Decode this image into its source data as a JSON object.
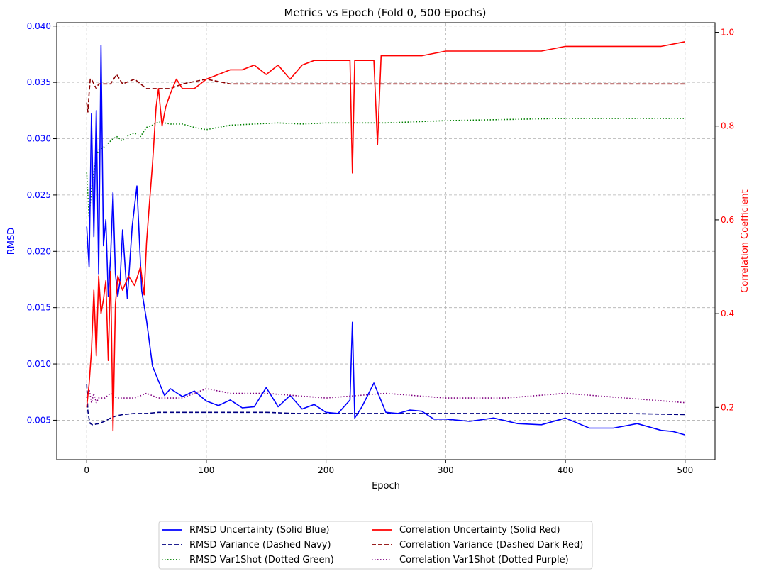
{
  "chart_data": {
    "type": "line",
    "title": "Metrics vs Epoch (Fold 0, 500 Epochs)",
    "xlabel": "Epoch",
    "ylabel_left": "RMSD",
    "ylabel_right": "Correlation Coefficient",
    "xlim": [
      -25,
      525
    ],
    "ylim_left": [
      0.0015,
      0.0403
    ],
    "ylim_right": [
      0.0885,
      1.0205
    ],
    "x_ticks": [
      0,
      100,
      200,
      300,
      400,
      500
    ],
    "x_tick_labels": [
      "0",
      "100",
      "200",
      "300",
      "400",
      "500"
    ],
    "y_left_ticks": [
      0.005,
      0.01,
      0.015,
      0.02,
      0.025,
      0.03,
      0.035,
      0.04
    ],
    "y_left_tick_labels": [
      "0.005",
      "0.010",
      "0.015",
      "0.020",
      "0.025",
      "0.030",
      "0.035",
      "0.040"
    ],
    "y_right_ticks": [
      0.2,
      0.4,
      0.6,
      0.8,
      1.0
    ],
    "y_right_tick_labels": [
      "0.2",
      "0.4",
      "0.6",
      "0.8",
      "1.0"
    ],
    "left_axis_color": "#0000ff",
    "right_axis_color": "#ff0000",
    "grid": true,
    "legend_placement": "bottom-center",
    "series": [
      {
        "name": "RMSD Uncertainty (Solid Blue)",
        "axis": "left",
        "color": "#0000ff",
        "dash": "solid",
        "x": [
          0,
          2,
          4,
          6,
          8,
          10,
          12,
          14,
          16,
          18,
          20,
          22,
          24,
          26,
          28,
          30,
          34,
          38,
          42,
          46,
          50,
          55,
          60,
          65,
          70,
          80,
          90,
          100,
          110,
          120,
          130,
          140,
          150,
          160,
          170,
          180,
          190,
          200,
          210,
          220,
          222,
          224,
          230,
          240,
          250,
          260,
          270,
          280,
          290,
          300,
          320,
          340,
          360,
          380,
          400,
          420,
          440,
          460,
          480,
          490,
          500
        ],
        "values": [
          0.0222,
          0.0186,
          0.0322,
          0.0213,
          0.0325,
          0.018,
          0.0383,
          0.0205,
          0.0228,
          0.016,
          0.0195,
          0.0252,
          0.018,
          0.016,
          0.0175,
          0.0219,
          0.0158,
          0.0222,
          0.0258,
          0.0165,
          0.0139,
          0.0098,
          0.0085,
          0.0072,
          0.0078,
          0.0071,
          0.0076,
          0.0067,
          0.0063,
          0.0068,
          0.0061,
          0.0062,
          0.0079,
          0.0062,
          0.0072,
          0.006,
          0.0064,
          0.0057,
          0.0056,
          0.0068,
          0.0137,
          0.0052,
          0.0062,
          0.0083,
          0.0057,
          0.0056,
          0.0059,
          0.0058,
          0.0051,
          0.0051,
          0.0049,
          0.0052,
          0.0047,
          0.0046,
          0.0052,
          0.0043,
          0.0043,
          0.0047,
          0.0041,
          0.004,
          0.0037
        ]
      },
      {
        "name": "RMSD Variance (Dashed Navy)",
        "axis": "left",
        "color": "#000080",
        "dash": "dashed",
        "x": [
          0,
          1,
          2,
          3,
          5,
          10,
          15,
          20,
          25,
          30,
          40,
          50,
          60,
          70,
          80,
          100,
          125,
          150,
          175,
          200,
          250,
          300,
          350,
          400,
          450,
          500
        ],
        "values": [
          0.0082,
          0.0058,
          0.0051,
          0.0047,
          0.0046,
          0.0047,
          0.0049,
          0.0052,
          0.0054,
          0.0055,
          0.0056,
          0.0056,
          0.0057,
          0.0057,
          0.0057,
          0.0057,
          0.0057,
          0.0057,
          0.0056,
          0.0056,
          0.0056,
          0.0056,
          0.0056,
          0.0056,
          0.0056,
          0.0055
        ]
      },
      {
        "name": "RMSD Var1Shot (Dotted Green)",
        "axis": "left",
        "color": "#008000",
        "dash": "dotted",
        "x": [
          0,
          2,
          4,
          6,
          8,
          10,
          15,
          20,
          25,
          30,
          35,
          40,
          45,
          50,
          55,
          60,
          70,
          80,
          90,
          100,
          120,
          140,
          160,
          180,
          200,
          250,
          300,
          350,
          400,
          450,
          500
        ],
        "values": [
          0.027,
          0.023,
          0.0255,
          0.027,
          0.0285,
          0.029,
          0.0293,
          0.0298,
          0.0302,
          0.0298,
          0.0303,
          0.0305,
          0.0302,
          0.031,
          0.0312,
          0.0315,
          0.0313,
          0.0313,
          0.031,
          0.0308,
          0.0312,
          0.0313,
          0.0314,
          0.0313,
          0.0314,
          0.0314,
          0.0316,
          0.0317,
          0.0318,
          0.0318,
          0.0318
        ]
      },
      {
        "name": "Correlation Uncertainty (Solid Red)",
        "axis": "right",
        "color": "#ff0000",
        "dash": "solid",
        "x": [
          0,
          2,
          4,
          6,
          8,
          10,
          12,
          14,
          16,
          18,
          20,
          22,
          24,
          26,
          30,
          35,
          40,
          45,
          48,
          50,
          52,
          55,
          58,
          60,
          63,
          66,
          70,
          75,
          80,
          90,
          100,
          110,
          120,
          130,
          140,
          150,
          160,
          170,
          180,
          190,
          200,
          210,
          220,
          222,
          224,
          230,
          240,
          243,
          246,
          250,
          260,
          270,
          280,
          300,
          320,
          340,
          360,
          380,
          400,
          420,
          440,
          460,
          480,
          500
        ],
        "values": [
          0.2,
          0.25,
          0.32,
          0.45,
          0.31,
          0.48,
          0.4,
          0.43,
          0.47,
          0.3,
          0.49,
          0.15,
          0.42,
          0.48,
          0.45,
          0.48,
          0.46,
          0.5,
          0.44,
          0.55,
          0.62,
          0.72,
          0.84,
          0.88,
          0.8,
          0.84,
          0.87,
          0.9,
          0.88,
          0.88,
          0.9,
          0.91,
          0.92,
          0.92,
          0.93,
          0.91,
          0.93,
          0.9,
          0.93,
          0.94,
          0.94,
          0.94,
          0.94,
          0.7,
          0.94,
          0.94,
          0.94,
          0.76,
          0.95,
          0.95,
          0.95,
          0.95,
          0.95,
          0.96,
          0.96,
          0.96,
          0.96,
          0.96,
          0.97,
          0.97,
          0.97,
          0.97,
          0.97,
          0.98
        ]
      },
      {
        "name": "Correlation Variance (Dashed Dark Red)",
        "axis": "right",
        "color": "#8b0000",
        "dash": "dashed",
        "x": [
          0,
          1,
          2,
          3,
          4,
          6,
          8,
          10,
          15,
          20,
          25,
          30,
          40,
          50,
          60,
          70,
          80,
          100,
          120,
          140,
          160,
          180,
          200,
          250,
          300,
          350,
          400,
          450,
          500
        ],
        "values": [
          0.85,
          0.83,
          0.87,
          0.9,
          0.9,
          0.89,
          0.88,
          0.89,
          0.89,
          0.89,
          0.91,
          0.89,
          0.9,
          0.88,
          0.88,
          0.88,
          0.89,
          0.9,
          0.89,
          0.89,
          0.89,
          0.89,
          0.89,
          0.89,
          0.89,
          0.89,
          0.89,
          0.89,
          0.89
        ]
      },
      {
        "name": "Correlation Var1Shot (Dotted Purple)",
        "axis": "right",
        "color": "#800080",
        "dash": "dotted",
        "x": [
          0,
          2,
          4,
          6,
          8,
          10,
          15,
          20,
          25,
          30,
          40,
          50,
          60,
          80,
          100,
          120,
          150,
          200,
          250,
          300,
          350,
          400,
          450,
          500
        ],
        "values": [
          0.22,
          0.24,
          0.21,
          0.23,
          0.21,
          0.22,
          0.22,
          0.23,
          0.22,
          0.22,
          0.22,
          0.23,
          0.22,
          0.22,
          0.24,
          0.23,
          0.23,
          0.22,
          0.23,
          0.22,
          0.22,
          0.23,
          0.22,
          0.21
        ]
      }
    ]
  }
}
